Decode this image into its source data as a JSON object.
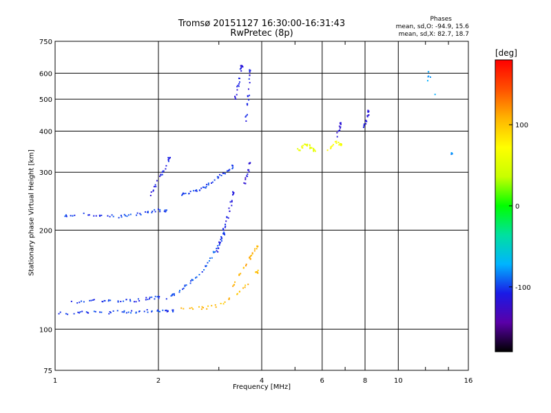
{
  "header": {
    "title": "Tromsø 20151127 16:30:00-16:31:43",
    "subtitle": "RwPretec (8p)",
    "phases_label": "Phases",
    "phases_o": "mean, sd,O: -94.9, 15.6",
    "phases_x": "mean, sd,X: 82.7, 18.7"
  },
  "colorbar": {
    "unit": "[deg]",
    "ticks": [
      "100",
      "0",
      "-100"
    ],
    "tick_values": [
      100,
      0,
      -100
    ],
    "range": [
      -180,
      180
    ],
    "colors": [
      "#000000",
      "#5a00a8",
      "#1a1ae6",
      "#00b4ff",
      "#00e0a0",
      "#00ff00",
      "#c8ff00",
      "#ffff00",
      "#ffb400",
      "#ff5000",
      "#ff0000"
    ]
  },
  "chart_data": {
    "type": "scatter",
    "title": "Tromsø 20151127 16:30:00-16:31:43",
    "subtitle": "RwPretec (8p)",
    "xlabel": "Frequency [MHz]",
    "ylabel": "Stationary phase Virtual Height [km]",
    "x_scale": "log",
    "y_scale": "log",
    "xlim": [
      1,
      16
    ],
    "ylim": [
      75,
      750
    ],
    "x_ticks": [
      1,
      2,
      4,
      6,
      8,
      10,
      16
    ],
    "x_tick_labels": [
      "1",
      "2",
      "4",
      "6",
      "8",
      "10",
      "16"
    ],
    "x_grid": [
      1,
      2,
      4,
      6,
      8,
      10,
      16
    ],
    "y_ticks": [
      75,
      100,
      200,
      300,
      400,
      500,
      600,
      750
    ],
    "y_tick_labels": [
      "75",
      "100",
      "200",
      "300",
      "400",
      "500",
      "600",
      "750"
    ],
    "y_grid": [
      100,
      200,
      300,
      400,
      500,
      600
    ],
    "grid": true,
    "color_axis": "phase (deg)",
    "series": [
      {
        "name": "",
        "phase": -100,
        "x": [
          1.02,
          1.1,
          1.2,
          1.3,
          1.4,
          1.5,
          1.6,
          1.7,
          1.8,
          1.9,
          2.0,
          2.1
        ],
        "y": [
          219,
          222,
          225,
          222,
          221,
          220,
          221,
          222,
          225,
          228,
          230,
          229
        ]
      },
      {
        "name": "",
        "phase": -100,
        "x": [
          2.3,
          2.4,
          2.5,
          2.6,
          2.7,
          2.8,
          2.9,
          3.0,
          3.1,
          3.2,
          3.3
        ],
        "y": [
          255,
          258,
          262,
          265,
          268,
          275,
          282,
          290,
          298,
          305,
          312
        ]
      },
      {
        "name": "",
        "phase": -110,
        "x": [
          1.9,
          1.95,
          2.0,
          2.05,
          2.1,
          2.15
        ],
        "y": [
          255,
          270,
          285,
          295,
          310,
          330
        ]
      },
      {
        "name": "",
        "phase": -100,
        "x": [
          1.02,
          1.1,
          1.2,
          1.3,
          1.4,
          1.5,
          1.6,
          1.7,
          1.8,
          1.9,
          2.0,
          2.1,
          2.2
        ],
        "y": [
          112,
          112,
          113,
          113,
          112,
          113,
          113,
          113,
          113,
          114,
          114,
          114,
          114
        ]
      },
      {
        "name": "",
        "phase": -100,
        "x": [
          1.1,
          1.2,
          1.3,
          1.4,
          1.5,
          1.6,
          1.7,
          1.8,
          1.9,
          2.0
        ],
        "y": [
          120,
          122,
          123,
          122,
          121,
          122,
          122,
          123,
          124,
          125
        ]
      },
      {
        "name": "",
        "phase": -95,
        "x": [
          2.1,
          2.2,
          2.3,
          2.4,
          2.5,
          2.6,
          2.7,
          2.8,
          2.9,
          3.0,
          3.1
        ],
        "y": [
          123,
          127,
          131,
          135,
          140,
          145,
          152,
          160,
          170,
          180,
          195
        ]
      },
      {
        "name": "",
        "phase": -110,
        "x": [
          2.95,
          3.0,
          3.05,
          3.1,
          3.15,
          3.2,
          3.25,
          3.3
        ],
        "y": [
          170,
          180,
          190,
          200,
          210,
          225,
          240,
          260
        ]
      },
      {
        "name": "",
        "phase": 105,
        "x": [
          2.3,
          2.5,
          2.7,
          2.9,
          3.1,
          3.3,
          3.5,
          3.7,
          3.9
        ],
        "y": [
          115,
          116,
          116,
          117,
          120,
          125,
          132,
          140,
          150
        ]
      },
      {
        "name": "",
        "phase": 110,
        "x": [
          3.3,
          3.4,
          3.5,
          3.6,
          3.7,
          3.8,
          3.9
        ],
        "y": [
          135,
          142,
          150,
          158,
          165,
          172,
          180
        ]
      },
      {
        "name": "",
        "phase": -110,
        "x": [
          3.35,
          3.38,
          3.42,
          3.45,
          3.5
        ],
        "y": [
          500,
          525,
          555,
          590,
          630
        ]
      },
      {
        "name": "",
        "phase": -110,
        "x": [
          3.6,
          3.62,
          3.65,
          3.68,
          3.7
        ],
        "y": [
          430,
          460,
          500,
          545,
          610
        ]
      },
      {
        "name": "",
        "phase": -115,
        "x": [
          3.55,
          3.6,
          3.65,
          3.7
        ],
        "y": [
          270,
          285,
          300,
          320
        ]
      },
      {
        "name": "",
        "phase": 60,
        "x": [
          5.1,
          5.2,
          5.3,
          5.4,
          5.5,
          5.6,
          5.7
        ],
        "y": [
          350,
          355,
          360,
          365,
          360,
          355,
          350
        ]
      },
      {
        "name": "",
        "phase": 70,
        "x": [
          6.2,
          6.4,
          6.6,
          6.8
        ],
        "y": [
          350,
          360,
          370,
          365
        ]
      },
      {
        "name": "",
        "phase": -115,
        "x": [
          6.6,
          6.7,
          6.8
        ],
        "y": [
          380,
          400,
          420
        ]
      },
      {
        "name": "",
        "phase": -115,
        "x": [
          7.9,
          8.0,
          8.1,
          8.2
        ],
        "y": [
          400,
          420,
          440,
          460
        ]
      },
      {
        "name": "",
        "phase": -80,
        "x": [
          12.2,
          12.2,
          14.3
        ],
        "y": [
          560,
          610,
          340
        ]
      }
    ]
  }
}
